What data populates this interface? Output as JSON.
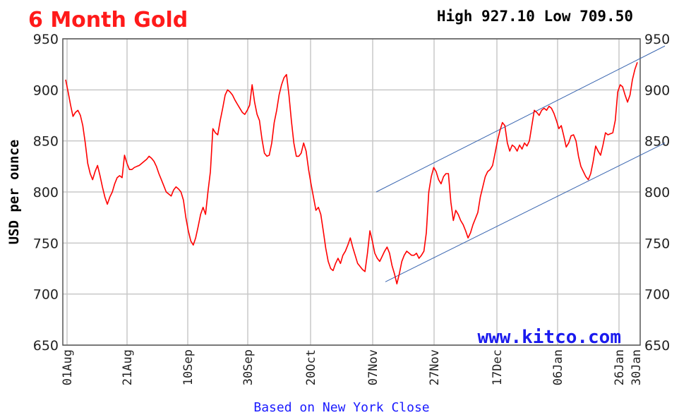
{
  "chart_data": {
    "type": "line",
    "title": "6 Month Gold",
    "high_low": "High 927.10 Low 709.50",
    "ylabel": "USD per ounce",
    "xlabel": "Based on New York Close",
    "watermark": "www.kitco.com",
    "ylim": [
      650,
      950
    ],
    "y_ticks": [
      "950",
      "900",
      "850",
      "800",
      "750",
      "700",
      "650"
    ],
    "x_ticks": [
      "01Aug",
      "21Aug",
      "10Sep",
      "30Sep",
      "20Oct",
      "07Nov",
      "27Nov",
      "17Dec",
      "06Jan",
      "26Jan",
      "30Jan"
    ],
    "grid": true,
    "series": [
      {
        "color": "#ff0000",
        "values": [
          910,
          898,
          885,
          874,
          878,
          880,
          875,
          865,
          848,
          828,
          818,
          812,
          820,
          826,
          816,
          805,
          795,
          788,
          795,
          800,
          808,
          814,
          816,
          814,
          836,
          828,
          822,
          822,
          824,
          825,
          826,
          828,
          830,
          832,
          835,
          833,
          830,
          825,
          818,
          812,
          806,
          800,
          798,
          796,
          802,
          805,
          803,
          800,
          792,
          775,
          762,
          752,
          748,
          755,
          766,
          778,
          785,
          778,
          800,
          820,
          862,
          858,
          856,
          870,
          882,
          895,
          900,
          898,
          895,
          890,
          886,
          882,
          878,
          876,
          880,
          885,
          905,
          888,
          876,
          870,
          852,
          838,
          835,
          836,
          848,
          868,
          880,
          895,
          905,
          912,
          915,
          895,
          870,
          848,
          835,
          835,
          838,
          848,
          840,
          822,
          808,
          795,
          782,
          785,
          778,
          762,
          745,
          732,
          725,
          723,
          730,
          735,
          730,
          738,
          742,
          748,
          755,
          746,
          738,
          730,
          727,
          724,
          722,
          740,
          762,
          752,
          740,
          735,
          732,
          737,
          742,
          746,
          740,
          728,
          720,
          710,
          720,
          732,
          738,
          742,
          740,
          738,
          738,
          740,
          735,
          738,
          742,
          760,
          800,
          815,
          824,
          820,
          812,
          808,
          815,
          818,
          818,
          790,
          772,
          782,
          778,
          772,
          768,
          762,
          755,
          760,
          768,
          774,
          780,
          795,
          805,
          815,
          820,
          822,
          826,
          838,
          850,
          860,
          868,
          865,
          848,
          840,
          846,
          844,
          840,
          846,
          842,
          848,
          845,
          850,
          865,
          880,
          878,
          875,
          880,
          882,
          880,
          884,
          882,
          877,
          870,
          862,
          865,
          855,
          844,
          848,
          855,
          856,
          850,
          835,
          825,
          820,
          815,
          812,
          818,
          830,
          845,
          840,
          836,
          846,
          858,
          856,
          857,
          858,
          870,
          898,
          905,
          903,
          895,
          888,
          895,
          910,
          920,
          927
        ]
      }
    ],
    "trend_lines": [
      {
        "color": "#3a66b0",
        "from": {
          "x": "06Nov",
          "y": 800
        },
        "to": {
          "x": "30Jan",
          "y": 943
        }
      },
      {
        "color": "#3a66b0",
        "from": {
          "x": "09Nov",
          "y": 712
        },
        "to": {
          "x": "30Jan",
          "y": 848
        }
      }
    ],
    "colors": {
      "line": "#ff0000",
      "title": "#ff1a1a",
      "grid": "#c8c8c8",
      "axis": "#555555",
      "footer": "#1a1aff"
    }
  }
}
